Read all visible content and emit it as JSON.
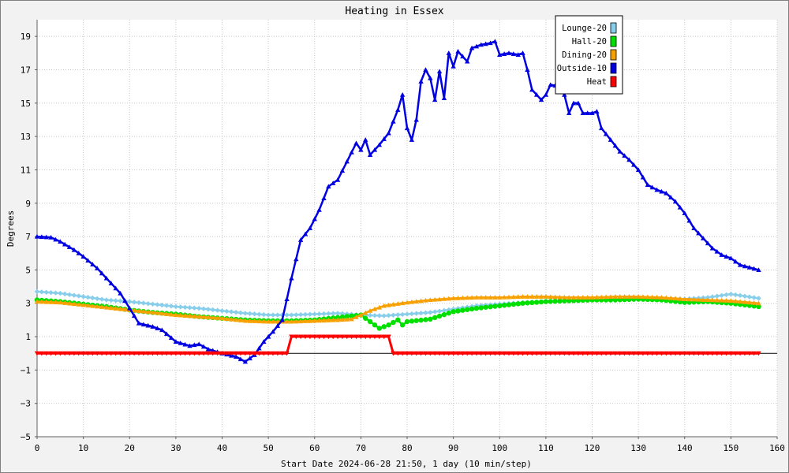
{
  "chart_data": {
    "type": "line",
    "title": "Heating in Essex",
    "xlabel": "Start Date 2024-06-28 21:50, 1 day (10 min/step)",
    "ylabel": "Degrees",
    "xlim": [
      0,
      160
    ],
    "ylim": [
      -5,
      20
    ],
    "x_ticks": [
      0,
      10,
      20,
      30,
      40,
      50,
      60,
      70,
      80,
      90,
      100,
      110,
      120,
      130,
      140,
      150,
      160
    ],
    "y_ticks": [
      -5,
      -3,
      -1,
      1,
      3,
      5,
      7,
      9,
      11,
      13,
      15,
      17,
      19
    ],
    "grid": true,
    "legend_position": "top-right",
    "series": [
      {
        "name": "Lounge-20",
        "color": "#87ceeb",
        "marker": "diamond",
        "points": [
          [
            0,
            3.7
          ],
          [
            5,
            3.6
          ],
          [
            10,
            3.4
          ],
          [
            15,
            3.2
          ],
          [
            20,
            3.1
          ],
          [
            25,
            2.95
          ],
          [
            30,
            2.8
          ],
          [
            35,
            2.7
          ],
          [
            40,
            2.55
          ],
          [
            45,
            2.4
          ],
          [
            50,
            2.3
          ],
          [
            55,
            2.3
          ],
          [
            60,
            2.35
          ],
          [
            65,
            2.4
          ],
          [
            70,
            2.3
          ],
          [
            75,
            2.25
          ],
          [
            80,
            2.35
          ],
          [
            85,
            2.45
          ],
          [
            90,
            2.65
          ],
          [
            95,
            2.85
          ],
          [
            100,
            2.95
          ],
          [
            105,
            3.05
          ],
          [
            110,
            3.1
          ],
          [
            115,
            3.15
          ],
          [
            120,
            3.2
          ],
          [
            125,
            3.25
          ],
          [
            130,
            3.3
          ],
          [
            135,
            3.3
          ],
          [
            140,
            3.25
          ],
          [
            145,
            3.35
          ],
          [
            150,
            3.55
          ],
          [
            156,
            3.3
          ]
        ]
      },
      {
        "name": "Hall-20",
        "color": "#00e000",
        "marker": "circle",
        "points": [
          [
            0,
            3.2
          ],
          [
            5,
            3.1
          ],
          [
            10,
            2.95
          ],
          [
            15,
            2.8
          ],
          [
            20,
            2.6
          ],
          [
            25,
            2.45
          ],
          [
            30,
            2.35
          ],
          [
            35,
            2.2
          ],
          [
            40,
            2.1
          ],
          [
            45,
            2.0
          ],
          [
            50,
            1.95
          ],
          [
            55,
            1.95
          ],
          [
            60,
            2.0
          ],
          [
            65,
            2.15
          ],
          [
            70,
            2.3
          ],
          [
            72,
            1.9
          ],
          [
            74,
            1.5
          ],
          [
            76,
            1.7
          ],
          [
            78,
            2.0
          ],
          [
            79,
            1.7
          ],
          [
            80,
            1.9
          ],
          [
            85,
            2.05
          ],
          [
            90,
            2.5
          ],
          [
            95,
            2.7
          ],
          [
            100,
            2.85
          ],
          [
            105,
            3.0
          ],
          [
            110,
            3.1
          ],
          [
            115,
            3.15
          ],
          [
            120,
            3.2
          ],
          [
            125,
            3.2
          ],
          [
            130,
            3.25
          ],
          [
            135,
            3.2
          ],
          [
            140,
            3.05
          ],
          [
            145,
            3.1
          ],
          [
            150,
            3.0
          ],
          [
            156,
            2.8
          ]
        ]
      },
      {
        "name": "Dining-20",
        "color": "#f7a000",
        "marker": "triangle",
        "points": [
          [
            0,
            3.1
          ],
          [
            5,
            3.05
          ],
          [
            10,
            2.9
          ],
          [
            15,
            2.75
          ],
          [
            20,
            2.6
          ],
          [
            25,
            2.45
          ],
          [
            30,
            2.3
          ],
          [
            35,
            2.2
          ],
          [
            40,
            2.1
          ],
          [
            45,
            1.95
          ],
          [
            50,
            1.9
          ],
          [
            55,
            1.9
          ],
          [
            60,
            1.95
          ],
          [
            65,
            2.0
          ],
          [
            68,
            2.05
          ],
          [
            70,
            2.3
          ],
          [
            72,
            2.55
          ],
          [
            75,
            2.85
          ],
          [
            80,
            3.05
          ],
          [
            85,
            3.2
          ],
          [
            90,
            3.3
          ],
          [
            95,
            3.35
          ],
          [
            100,
            3.35
          ],
          [
            105,
            3.4
          ],
          [
            110,
            3.4
          ],
          [
            115,
            3.35
          ],
          [
            120,
            3.35
          ],
          [
            125,
            3.4
          ],
          [
            130,
            3.4
          ],
          [
            135,
            3.35
          ],
          [
            140,
            3.25
          ],
          [
            145,
            3.2
          ],
          [
            150,
            3.15
          ],
          [
            156,
            3.0
          ]
        ]
      },
      {
        "name": "Outside-10",
        "color": "#0000e0",
        "marker": "triangle",
        "points": [
          [
            0,
            7.0
          ],
          [
            3,
            6.95
          ],
          [
            5,
            6.7
          ],
          [
            8,
            6.2
          ],
          [
            10,
            5.8
          ],
          [
            13,
            5.1
          ],
          [
            15,
            4.5
          ],
          [
            18,
            3.6
          ],
          [
            20,
            2.7
          ],
          [
            22,
            1.8
          ],
          [
            25,
            1.6
          ],
          [
            27,
            1.4
          ],
          [
            30,
            0.7
          ],
          [
            33,
            0.45
          ],
          [
            35,
            0.55
          ],
          [
            37,
            0.25
          ],
          [
            40,
            0.0
          ],
          [
            43,
            -0.2
          ],
          [
            45,
            -0.5
          ],
          [
            47,
            -0.1
          ],
          [
            49,
            0.7
          ],
          [
            51,
            1.3
          ],
          [
            53,
            2.0
          ],
          [
            55,
            4.5
          ],
          [
            57,
            6.8
          ],
          [
            59,
            7.5
          ],
          [
            61,
            8.6
          ],
          [
            63,
            10.0
          ],
          [
            65,
            10.4
          ],
          [
            67,
            11.5
          ],
          [
            69,
            12.6
          ],
          [
            70,
            12.2
          ],
          [
            71,
            12.8
          ],
          [
            72,
            11.9
          ],
          [
            74,
            12.5
          ],
          [
            76,
            13.2
          ],
          [
            78,
            14.6
          ],
          [
            79,
            15.5
          ],
          [
            80,
            13.5
          ],
          [
            81,
            12.8
          ],
          [
            82,
            14.0
          ],
          [
            83,
            16.3
          ],
          [
            84,
            17.0
          ],
          [
            85,
            16.5
          ],
          [
            86,
            15.2
          ],
          [
            87,
            16.9
          ],
          [
            88,
            15.3
          ],
          [
            89,
            18.0
          ],
          [
            90,
            17.2
          ],
          [
            91,
            18.1
          ],
          [
            93,
            17.5
          ],
          [
            94,
            18.3
          ],
          [
            96,
            18.5
          ],
          [
            98,
            18.6
          ],
          [
            99,
            18.7
          ],
          [
            100,
            17.9
          ],
          [
            102,
            18.0
          ],
          [
            104,
            17.9
          ],
          [
            105,
            18.0
          ],
          [
            106,
            17.0
          ],
          [
            107,
            15.8
          ],
          [
            109,
            15.2
          ],
          [
            110,
            15.5
          ],
          [
            111,
            16.1
          ],
          [
            113,
            16.0
          ],
          [
            114,
            15.5
          ],
          [
            115,
            14.4
          ],
          [
            116,
            15.0
          ],
          [
            117,
            15.0
          ],
          [
            118,
            14.4
          ],
          [
            120,
            14.4
          ],
          [
            121,
            14.5
          ],
          [
            122,
            13.5
          ],
          [
            124,
            12.8
          ],
          [
            126,
            12.1
          ],
          [
            128,
            11.6
          ],
          [
            130,
            11.0
          ],
          [
            132,
            10.1
          ],
          [
            134,
            9.8
          ],
          [
            136,
            9.6
          ],
          [
            138,
            9.1
          ],
          [
            140,
            8.4
          ],
          [
            142,
            7.5
          ],
          [
            144,
            6.9
          ],
          [
            146,
            6.3
          ],
          [
            148,
            5.9
          ],
          [
            150,
            5.7
          ],
          [
            152,
            5.3
          ],
          [
            154,
            5.15
          ],
          [
            156,
            5.0
          ]
        ]
      },
      {
        "name": "Heat",
        "color": "#ff0000",
        "marker": "triangle-down",
        "points": [
          [
            0,
            0
          ],
          [
            54,
            0
          ],
          [
            55,
            1
          ],
          [
            76,
            1
          ],
          [
            77,
            0
          ],
          [
            156,
            0
          ]
        ]
      }
    ]
  }
}
